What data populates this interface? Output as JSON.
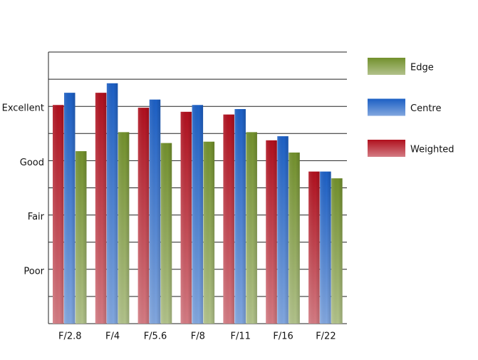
{
  "chart_data": {
    "type": "bar",
    "categories": [
      "F/2.8",
      "F/4",
      "F/5.6",
      "F/8",
      "F/11",
      "F/16",
      "F/22"
    ],
    "series": [
      {
        "name": "Weighted",
        "color": "#b0101e",
        "values": [
          8.05,
          8.5,
          7.95,
          7.8,
          7.7,
          6.75,
          5.6
        ]
      },
      {
        "name": "Centre",
        "color": "#1c5fc4",
        "values": [
          8.5,
          8.85,
          8.25,
          8.05,
          7.9,
          6.9,
          5.6
        ]
      },
      {
        "name": "Edge",
        "color": "#72902c",
        "values": [
          6.35,
          7.05,
          6.65,
          6.7,
          7.05,
          6.3,
          5.35
        ]
      }
    ],
    "ylim": [
      0,
      10
    ],
    "yticks": [
      {
        "value": 0,
        "label": null
      },
      {
        "value": 1,
        "label": null
      },
      {
        "value": 2,
        "label": "Poor"
      },
      {
        "value": 3,
        "label": null
      },
      {
        "value": 4,
        "label": "Fair"
      },
      {
        "value": 5,
        "label": null
      },
      {
        "value": 6,
        "label": "Good"
      },
      {
        "value": 7,
        "label": null
      },
      {
        "value": 8,
        "label": "Excellent"
      },
      {
        "value": 9,
        "label": null
      },
      {
        "value": 10,
        "label": null
      }
    ],
    "grid": true
  }
}
